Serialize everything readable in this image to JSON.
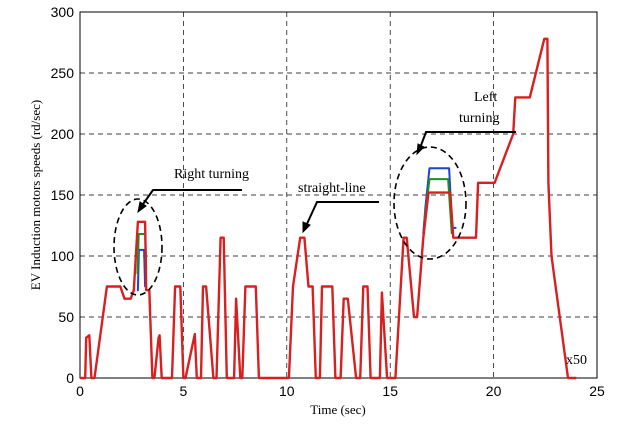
{
  "chart_data": {
    "type": "line",
    "xlabel": "Time (sec)",
    "ylabel": "EV Induction motors  speeds  (rd/sec)",
    "xlim": [
      0,
      25
    ],
    "ylim": [
      0,
      300
    ],
    "grid": true,
    "xticks": [
      "0",
      "5",
      "10",
      "15",
      "20",
      "25"
    ],
    "yticks": [
      "0",
      "50",
      "100",
      "150",
      "200",
      "250",
      "300"
    ],
    "series": [
      {
        "color": "#1f3fd8",
        "x": [
          2.75,
          2.8,
          2.85,
          3.1,
          3.15,
          3.22
        ],
        "y": [
          72,
          72,
          105,
          105,
          75,
          75
        ]
      },
      {
        "color": "#1f8f1f",
        "x": [
          2.78,
          2.84,
          3.16,
          3.2
        ],
        "y": [
          85,
          118,
          118,
          88
        ]
      },
      {
        "color": "#1f3fd8",
        "x": [
          16.6,
          16.7,
          16.9,
          17.85,
          18.0,
          18.2
        ],
        "y": [
          118,
          140,
          172,
          172,
          123,
          123
        ]
      },
      {
        "color": "#1f8f1f",
        "x": [
          16.65,
          16.9,
          17.8,
          17.98
        ],
        "y": [
          128,
          163,
          163,
          118
        ]
      },
      {
        "color": "#d82020",
        "x": [
          0,
          0.25,
          0.3,
          0.45,
          0.55,
          0.65,
          0.7,
          1.3,
          1.4,
          1.95,
          2.15,
          2.45,
          2.6,
          2.8,
          2.85,
          2.9,
          3.15,
          3.2,
          3.35,
          3.5,
          3.6,
          3.8,
          3.85,
          3.95,
          4.45,
          4.6,
          4.85,
          5.0,
          5.1,
          5.55,
          5.65,
          5.85,
          5.95,
          6.1,
          6.45,
          6.6,
          6.8,
          6.95,
          7.1,
          7.45,
          7.55,
          7.75,
          7.85,
          8.0,
          8.5,
          8.65,
          9.3,
          9.5,
          10.1,
          10.3,
          10.65,
          10.85,
          11.05,
          11.25,
          11.4,
          11.6,
          11.7,
          12.2,
          12.35,
          12.6,
          12.75,
          12.95,
          13.35,
          13.55,
          13.7,
          13.9,
          14.05,
          14.5,
          14.6,
          14.85,
          15.25,
          15.65,
          15.8,
          16.15,
          16.3,
          16.6,
          16.85,
          17.9,
          18.05,
          18.2,
          18.25,
          19.0,
          19.05,
          19.15,
          19.25,
          19.95,
          20.05,
          20.95,
          21.05,
          21.65,
          21.75,
          22.45,
          22.6,
          22.65,
          22.8,
          23.6,
          23.8,
          24.0
        ],
        "y": [
          0,
          0,
          33,
          35,
          0,
          0,
          0,
          75,
          75,
          75,
          65,
          65,
          72,
          128,
          128,
          128,
          128,
          72,
          72,
          0,
          0,
          33,
          35,
          0,
          0,
          75,
          75,
          0,
          0,
          36,
          0,
          0,
          75,
          75,
          0,
          0,
          115,
          115,
          0,
          0,
          65,
          0,
          0,
          75,
          75,
          0,
          0,
          0,
          0,
          75,
          115,
          115,
          75,
          75,
          0,
          0,
          75,
          75,
          0,
          0,
          65,
          65,
          0,
          0,
          75,
          75,
          0,
          0,
          70,
          0,
          0,
          115,
          115,
          50,
          50,
          115,
          152,
          152,
          115,
          115,
          115,
          115,
          115,
          115,
          160,
          160,
          160,
          200,
          230,
          230,
          230,
          278,
          278,
          160,
          100,
          0,
          0,
          0
        ]
      }
    ],
    "annotations": [
      {
        "text": "Right turning"
      },
      {
        "text": "straight-line"
      },
      {
        "text": "Left"
      },
      {
        "text": "turning"
      },
      {
        "text": "x50"
      }
    ]
  }
}
